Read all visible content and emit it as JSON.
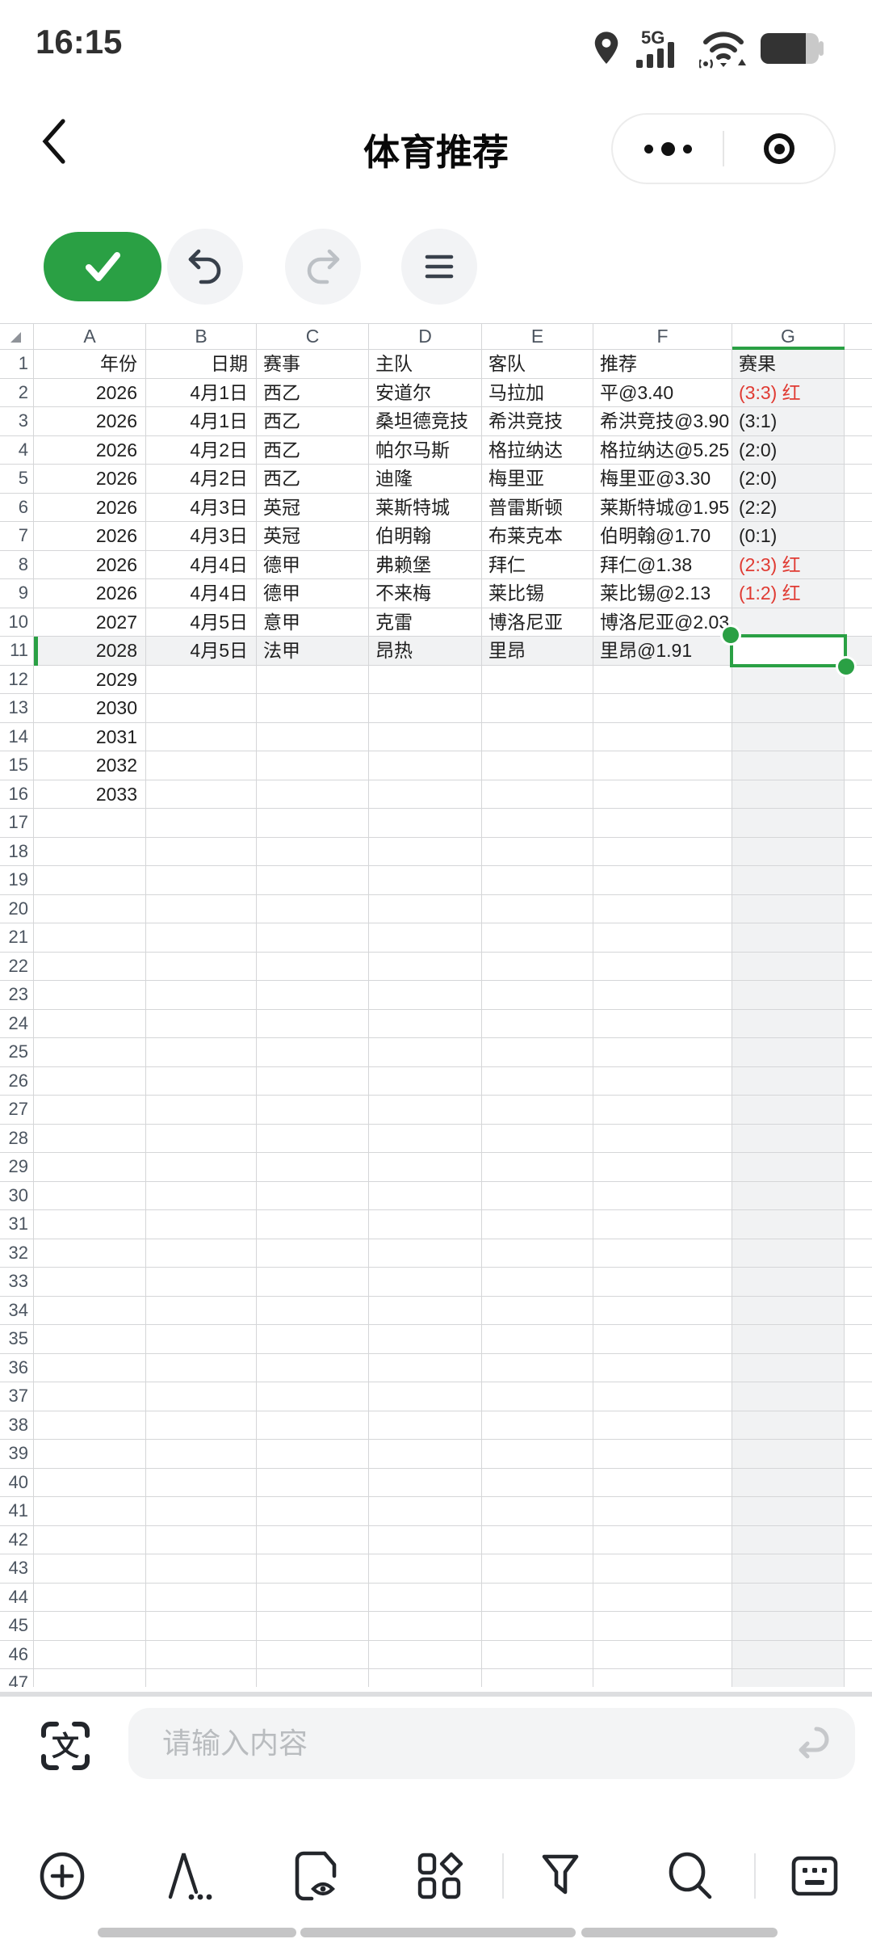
{
  "status_bar": {
    "time": "16:15",
    "network_label": "5G",
    "icons": [
      "location-icon",
      "signal-5g-icon",
      "wifi-icon",
      "battery-icon"
    ]
  },
  "nav_bar": {
    "title": "体育推荐",
    "capsule": {
      "more_icon": "ellipsis-icon",
      "exit_icon": "record-circle-icon"
    }
  },
  "edit_toolbar": {
    "buttons": [
      "confirm",
      "undo",
      "redo",
      "menu"
    ]
  },
  "sheet": {
    "column_letters": [
      "A",
      "B",
      "C",
      "D",
      "E",
      "F",
      "G"
    ],
    "visible_row_count": 47,
    "header_labels": [
      "年份",
      "日期",
      "赛事",
      "主队",
      "客队",
      "推荐",
      "赛果"
    ],
    "records": [
      {
        "row": 2,
        "year": "2026",
        "date": "4月1日",
        "league": "西乙",
        "home": "安道尔",
        "away": "马拉加",
        "tip": "平@3.40",
        "result": "(3:3) 红",
        "result_red": true
      },
      {
        "row": 3,
        "year": "2026",
        "date": "4月1日",
        "league": "西乙",
        "home": "桑坦德竞技",
        "away": "希洪竞技",
        "tip": "希洪竞技@3.90",
        "result": "(3:1)",
        "result_red": false
      },
      {
        "row": 4,
        "year": "2026",
        "date": "4月2日",
        "league": "西乙",
        "home": "帕尔马斯",
        "away": "格拉纳达",
        "tip": "格拉纳达@5.25",
        "result": "(2:0)",
        "result_red": false
      },
      {
        "row": 5,
        "year": "2026",
        "date": "4月2日",
        "league": "西乙",
        "home": "迪隆",
        "away": "梅里亚",
        "tip": "梅里亚@3.30",
        "result": "(2:0)",
        "result_red": false
      },
      {
        "row": 6,
        "year": "2026",
        "date": "4月3日",
        "league": "英冠",
        "home": "莱斯特城",
        "away": "普雷斯顿",
        "tip": "莱斯特城@1.95",
        "result": "(2:2)",
        "result_red": false
      },
      {
        "row": 7,
        "year": "2026",
        "date": "4月3日",
        "league": "英冠",
        "home": "伯明翰",
        "away": "布莱克本",
        "tip": "伯明翰@1.70",
        "result": "(0:1)",
        "result_red": false
      },
      {
        "row": 8,
        "year": "2026",
        "date": "4月4日",
        "league": "德甲",
        "home": "弗赖堡",
        "away": "拜仁",
        "tip": "拜仁@1.38",
        "result": "(2:3) 红",
        "result_red": true
      },
      {
        "row": 9,
        "year": "2026",
        "date": "4月4日",
        "league": "德甲",
        "home": "不来梅",
        "away": "莱比锡",
        "tip": "莱比锡@2.13",
        "result": "(1:2) 红",
        "result_red": true
      },
      {
        "row": 10,
        "year": "2027",
        "date": "4月5日",
        "league": "意甲",
        "home": "克雷",
        "away": "博洛尼亚",
        "tip": "博洛尼亚@2.03",
        "result": "",
        "result_red": false
      },
      {
        "row": 11,
        "year": "2028",
        "date": "4月5日",
        "league": "法甲",
        "home": "昂热",
        "away": "里昂",
        "tip": "里昂@1.91",
        "result": "",
        "result_red": false
      },
      {
        "row": 12,
        "year": "2029"
      },
      {
        "row": 13,
        "year": "2030"
      },
      {
        "row": 14,
        "year": "2031"
      },
      {
        "row": 15,
        "year": "2032"
      },
      {
        "row": 16,
        "year": "2033"
      }
    ],
    "selection": {
      "active_cell": "G11",
      "active_row": 11,
      "active_column": "G"
    }
  },
  "input_bar": {
    "placeholder": "请输入内容",
    "left_icon": "scan-text-icon",
    "right_icon": "return-icon"
  },
  "bottom_toolbar": {
    "icons": [
      "insert-plus-icon",
      "font-icon",
      "doc-preview-icon",
      "shapes-icon",
      "filter-icon",
      "search-icon",
      "keyboard-icon"
    ]
  },
  "colors": {
    "accent_green": "#2aa044",
    "result_red": "#e03b33",
    "highlight_gray": "#f1f2f3"
  }
}
